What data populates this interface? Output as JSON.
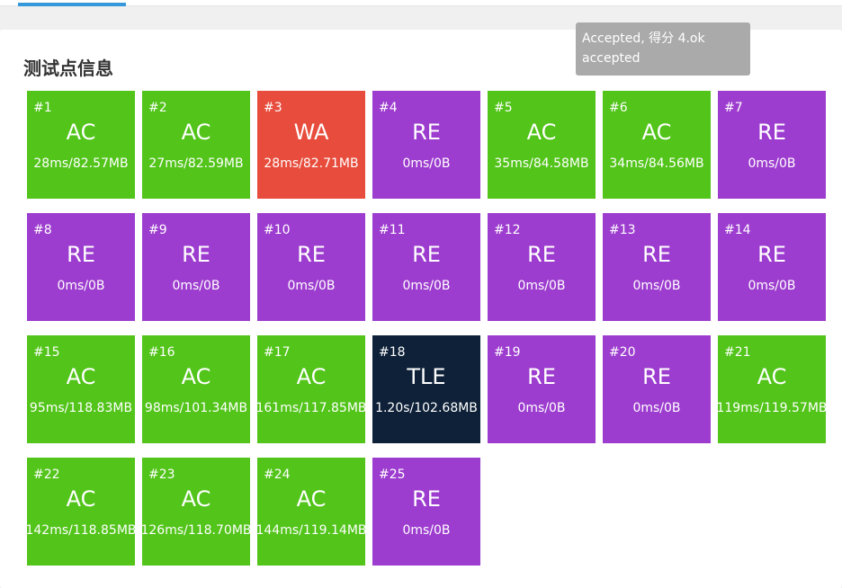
{
  "header": {
    "title": "测试点信息"
  },
  "tooltip": {
    "text": "Accepted, 得分 4.ok accepted"
  },
  "cases": [
    {
      "id": "#1",
      "status": "AC",
      "stats": "28ms/82.57MB",
      "color": "#52c41a"
    },
    {
      "id": "#2",
      "status": "AC",
      "stats": "27ms/82.59MB",
      "color": "#52c41a"
    },
    {
      "id": "#3",
      "status": "WA",
      "stats": "28ms/82.71MB",
      "color": "#e74c3c"
    },
    {
      "id": "#4",
      "status": "RE",
      "stats": "0ms/0B",
      "color": "#9d3dcf"
    },
    {
      "id": "#5",
      "status": "AC",
      "stats": "35ms/84.58MB",
      "color": "#52c41a"
    },
    {
      "id": "#6",
      "status": "AC",
      "stats": "34ms/84.56MB",
      "color": "#52c41a"
    },
    {
      "id": "#7",
      "status": "RE",
      "stats": "0ms/0B",
      "color": "#9d3dcf"
    },
    {
      "id": "#8",
      "status": "RE",
      "stats": "0ms/0B",
      "color": "#9d3dcf"
    },
    {
      "id": "#9",
      "status": "RE",
      "stats": "0ms/0B",
      "color": "#9d3dcf"
    },
    {
      "id": "#10",
      "status": "RE",
      "stats": "0ms/0B",
      "color": "#9d3dcf"
    },
    {
      "id": "#11",
      "status": "RE",
      "stats": "0ms/0B",
      "color": "#9d3dcf"
    },
    {
      "id": "#12",
      "status": "RE",
      "stats": "0ms/0B",
      "color": "#9d3dcf"
    },
    {
      "id": "#13",
      "status": "RE",
      "stats": "0ms/0B",
      "color": "#9d3dcf"
    },
    {
      "id": "#14",
      "status": "RE",
      "stats": "0ms/0B",
      "color": "#9d3dcf"
    },
    {
      "id": "#15",
      "status": "AC",
      "stats": "95ms/118.83MB",
      "color": "#52c41a"
    },
    {
      "id": "#16",
      "status": "AC",
      "stats": "98ms/101.34MB",
      "color": "#52c41a"
    },
    {
      "id": "#17",
      "status": "AC",
      "stats": "161ms/117.85MB",
      "color": "#52c41a"
    },
    {
      "id": "#18",
      "status": "TLE",
      "stats": "1.20s/102.68MB",
      "color": "#0e2138"
    },
    {
      "id": "#19",
      "status": "RE",
      "stats": "0ms/0B",
      "color": "#9d3dcf"
    },
    {
      "id": "#20",
      "status": "RE",
      "stats": "0ms/0B",
      "color": "#9d3dcf"
    },
    {
      "id": "#21",
      "status": "AC",
      "stats": "119ms/119.57MB",
      "color": "#52c41a"
    },
    {
      "id": "#22",
      "status": "AC",
      "stats": "142ms/118.85MB",
      "color": "#52c41a"
    },
    {
      "id": "#23",
      "status": "AC",
      "stats": "126ms/118.70MB",
      "color": "#52c41a"
    },
    {
      "id": "#24",
      "status": "AC",
      "stats": "144ms/119.14MB",
      "color": "#52c41a"
    },
    {
      "id": "#25",
      "status": "RE",
      "stats": "0ms/0B",
      "color": "#9d3dcf"
    }
  ]
}
